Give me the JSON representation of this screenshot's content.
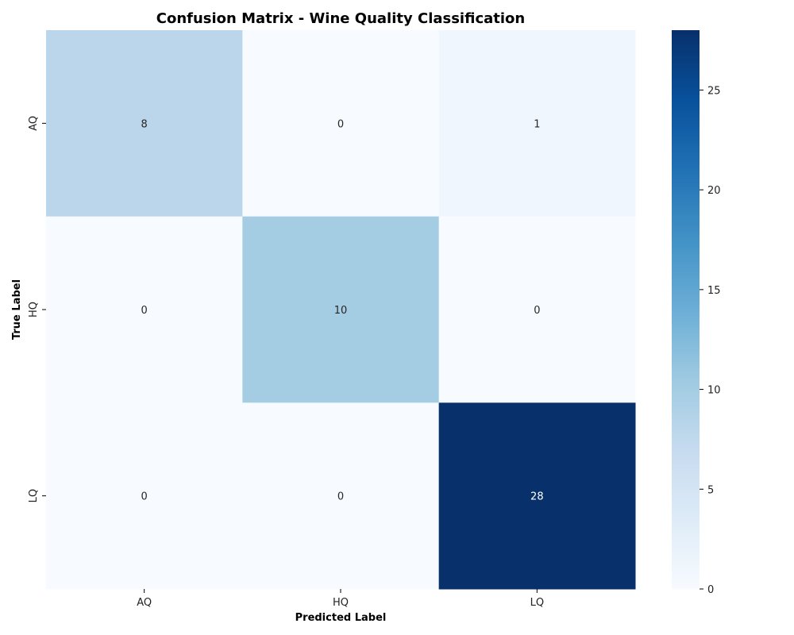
{
  "chart_data": {
    "type": "heatmap",
    "title": "Confusion Matrix - Wine Quality Classification",
    "xlabel": "Predicted Label",
    "ylabel": "True Label",
    "x_categories": [
      "AQ",
      "HQ",
      "LQ"
    ],
    "y_categories": [
      "AQ",
      "HQ",
      "LQ"
    ],
    "values": [
      [
        8,
        0,
        1
      ],
      [
        0,
        10,
        0
      ],
      [
        0,
        0,
        28
      ]
    ],
    "colormap": "Blues",
    "colorbar": {
      "range": [
        0,
        28
      ],
      "ticks": [
        0,
        5,
        10,
        15,
        20,
        25
      ],
      "tick_labels": [
        "0",
        "5",
        "10",
        "15",
        "20",
        "25"
      ]
    },
    "annotations": true
  }
}
